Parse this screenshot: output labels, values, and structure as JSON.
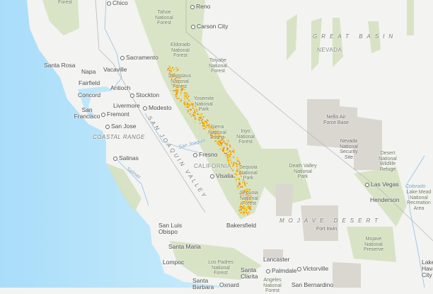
{
  "map": {
    "colors": {
      "ocean": "#b6e4fb",
      "land": "#f3f3f1",
      "forest": "#d5e2c0",
      "restricted": "#d9d6d1",
      "fire_points": [
        "#f5a300",
        "#ffd400",
        "#f07a00"
      ]
    },
    "regions": {
      "great_basin": "GREAT BASIN",
      "nevada": "NEVADA",
      "california": "CALIFORNIA",
      "coastal_range": "COASTAL RANGE",
      "san_joaquin_valley": "SAN JOAQUIN VALLEY",
      "mojave_desert": "MOJAVE DESERT"
    },
    "water": {
      "san_joaquin": "San Joaquin",
      "salinas": "Salinas",
      "colorado": "Colorado"
    },
    "cities": [
      "Chico",
      "Reno",
      "Carson City",
      "Sacramento",
      "Santa Rosa",
      "Napa",
      "Vacaville",
      "Fairfield",
      "Antioch",
      "Concord",
      "Stockton",
      "San Francisco",
      "Livermore",
      "Fremont",
      "Modesto",
      "San Jose",
      "Fresno",
      "Visalia",
      "Salinas",
      "San Luis Obispo",
      "Santa Maria",
      "Lompoc",
      "Santa Barbara",
      "Bakersfield",
      "Las Vegas",
      "Henderson",
      "Lancaster",
      "Santa Clarita",
      "Palmdale",
      "Victorville",
      "Oxnard",
      "San Bernardino",
      "Lake Havasu City"
    ],
    "areas": [
      "Forest",
      "Tahoe National Forest",
      "Eldorado National Forest",
      "Toiyabe National Forest",
      "Stanislaus National Forest",
      "Yosemite National Park",
      "Sierra National Forest",
      "Inyo National Forest",
      "Sequoia National Park",
      "Sequoia National Forest",
      "Death Valley National Park",
      "Nellis Air Force Base",
      "Nevada National Security Site",
      "Desert National Wildlife Refuge",
      "Lake Mead National Recreation Area",
      "Fort Irwin",
      "Mojave National Preserve",
      "Los Padres National Forest",
      "Angeles National Forest"
    ]
  }
}
